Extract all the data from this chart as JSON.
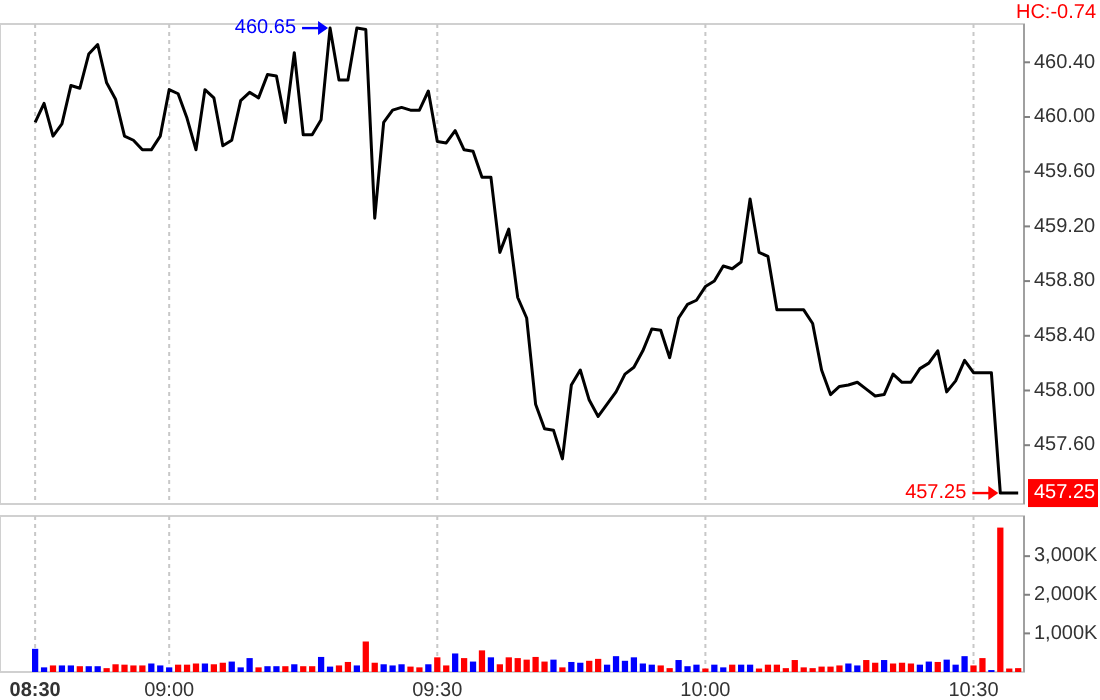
{
  "chart_data": [
    {
      "type": "line",
      "annotations": [
        "HC:-0.74",
        "460.65",
        "457.25",
        "457.25"
      ],
      "categories": [
        null,
        null,
        null,
        null,
        null,
        null,
        null,
        null,
        null,
        null,
        null,
        null,
        null,
        null,
        null,
        null,
        null,
        null,
        null,
        null,
        null,
        null,
        null,
        null,
        null,
        null,
        null,
        null,
        null,
        null,
        null,
        null,
        null,
        null,
        null,
        null,
        null,
        null,
        null,
        null,
        null,
        null,
        null,
        null,
        null,
        null,
        null,
        null,
        null,
        null,
        null,
        null,
        null,
        null,
        null,
        null,
        null,
        null,
        null,
        null,
        null,
        null,
        null,
        null,
        null,
        null,
        null,
        null,
        null,
        null,
        null,
        null,
        null,
        null,
        null,
        null,
        null,
        null,
        null,
        null,
        null,
        null,
        null,
        null,
        null,
        null,
        null,
        null,
        null,
        null,
        null,
        null,
        null,
        null,
        null,
        null,
        null,
        null,
        null,
        null,
        null,
        null,
        null,
        null,
        null,
        null,
        null,
        null,
        null,
        null,
        null
      ],
      "series": [
        {
          "color": "#000000",
          "values": [
            459.96,
            460.1,
            459.86,
            459.95,
            460.23,
            460.21,
            460.46,
            460.53,
            460.25,
            460.13,
            459.86,
            459.83,
            459.76,
            459.76,
            459.86,
            460.2,
            460.17,
            459.99,
            459.76,
            460.2,
            460.14,
            459.79,
            459.83,
            460.12,
            460.18,
            460.14,
            460.31,
            460.3,
            459.96,
            460.47,
            459.87,
            459.87,
            459.98,
            460.65,
            460.27,
            460.27,
            460.65,
            460.64,
            459.26,
            459.96,
            460.05,
            460.07,
            460.05,
            460.05,
            460.19,
            459.82,
            459.81,
            459.9,
            459.76,
            459.75,
            459.56,
            459.56,
            459.01,
            459.18,
            458.68,
            458.53,
            457.9,
            457.72,
            457.71,
            457.5,
            458.04,
            458.15,
            457.93,
            457.81,
            457.9,
            457.99,
            458.12,
            458.17,
            458.29,
            458.45,
            458.44,
            458.24,
            458.53,
            458.63,
            458.66,
            458.76,
            458.8,
            458.91,
            458.89,
            458.94,
            459.4,
            459.01,
            458.98,
            458.59,
            458.59,
            458.59,
            458.59,
            458.49,
            458.15,
            457.97,
            458.03,
            458.04,
            458.06,
            458.01,
            457.96,
            457.97,
            458.12,
            458.06,
            458.06,
            458.16,
            458.2,
            458.29,
            457.99,
            458.07,
            458.22,
            458.13,
            458.13,
            458.13,
            457.25,
            457.25,
            457.25
          ]
        }
      ],
      "ylim": [
        457.17,
        460.68
      ],
      "yticks": [
        {
          "value": 457.6,
          "label": "457.60"
        },
        {
          "value": 458,
          "label": "458.00"
        },
        {
          "value": 458.4,
          "label": "458.40"
        },
        {
          "value": 458.8,
          "label": "458.80"
        },
        {
          "value": 459.2,
          "label": "459.20"
        },
        {
          "value": 459.6,
          "label": "459.60"
        },
        {
          "value": 460,
          "label": "460.00"
        },
        {
          "value": 460.4,
          "label": "460.40"
        }
      ],
      "grid": "x"
    },
    {
      "type": "bar",
      "categories": [
        "08:30",
        null,
        null,
        null,
        null,
        null,
        null,
        null,
        null,
        null,
        null,
        null,
        null,
        null,
        null,
        "09:00",
        null,
        null,
        null,
        null,
        null,
        null,
        null,
        null,
        null,
        null,
        null,
        null,
        null,
        null,
        null,
        null,
        null,
        null,
        null,
        null,
        null,
        null,
        null,
        null,
        null,
        null,
        null,
        null,
        null,
        "09:30",
        null,
        null,
        null,
        null,
        null,
        null,
        null,
        null,
        null,
        null,
        null,
        null,
        null,
        null,
        null,
        null,
        null,
        null,
        null,
        null,
        null,
        null,
        null,
        null,
        null,
        null,
        null,
        null,
        null,
        "10:00",
        null,
        null,
        null,
        null,
        null,
        null,
        null,
        null,
        null,
        null,
        null,
        null,
        null,
        null,
        null,
        null,
        null,
        null,
        null,
        null,
        null,
        null,
        null,
        null,
        null,
        null,
        null,
        null,
        null,
        "10:30",
        null,
        null,
        null,
        null,
        null
      ],
      "values": [
        600,
        120,
        170,
        170,
        170,
        150,
        150,
        150,
        100,
        200,
        190,
        170,
        170,
        220,
        170,
        120,
        190,
        190,
        220,
        220,
        200,
        240,
        270,
        120,
        360,
        120,
        150,
        150,
        150,
        200,
        150,
        150,
        390,
        140,
        170,
        260,
        170,
        790,
        240,
        200,
        170,
        200,
        140,
        120,
        200,
        380,
        170,
        480,
        360,
        270,
        560,
        380,
        200,
        380,
        360,
        320,
        390,
        270,
        320,
        120,
        260,
        240,
        290,
        340,
        190,
        410,
        290,
        380,
        220,
        190,
        170,
        100,
        310,
        150,
        190,
        90,
        190,
        120,
        190,
        190,
        190,
        90,
        190,
        190,
        100,
        310,
        120,
        100,
        140,
        140,
        170,
        220,
        170,
        310,
        240,
        310,
        220,
        240,
        220,
        190,
        270,
        260,
        320,
        190,
        410,
        170,
        360,
        50,
        3740,
        90,
        100
      ],
      "colors": [
        "#0000ff",
        "#0000ff",
        "#ff0000",
        "#0000ff",
        "#0000ff",
        "#ff0000",
        "#0000ff",
        "#0000ff",
        "#ff0000",
        "#ff0000",
        "#ff0000",
        "#ff0000",
        "#ff0000",
        "#0000ff",
        "#0000ff",
        "#0000ff",
        "#ff0000",
        "#ff0000",
        "#ff0000",
        "#0000ff",
        "#ff0000",
        "#ff0000",
        "#0000ff",
        "#0000ff",
        "#0000ff",
        "#ff0000",
        "#0000ff",
        "#0000ff",
        "#ff0000",
        "#0000ff",
        "#ff0000",
        "#ff0000",
        "#0000ff",
        "#0000ff",
        "#ff0000",
        "#ff0000",
        "#0000ff",
        "#ff0000",
        "#ff0000",
        "#0000ff",
        "#0000ff",
        "#0000ff",
        "#ff0000",
        "#ff0000",
        "#0000ff",
        "#ff0000",
        "#ff0000",
        "#0000ff",
        "#ff0000",
        "#0000ff",
        "#ff0000",
        "#0000ff",
        "#ff0000",
        "#ff0000",
        "#ff0000",
        "#ff0000",
        "#ff0000",
        "#ff0000",
        "#0000ff",
        "#ff0000",
        "#0000ff",
        "#0000ff",
        "#ff0000",
        "#ff0000",
        "#0000ff",
        "#0000ff",
        "#0000ff",
        "#0000ff",
        "#0000ff",
        "#0000ff",
        "#ff0000",
        "#ff0000",
        "#0000ff",
        "#0000ff",
        "#0000ff",
        "#ff0000",
        "#0000ff",
        "#0000ff",
        "#ff0000",
        "#0000ff",
        "#0000ff",
        "#ff0000",
        "#ff0000",
        "#ff0000",
        "#ff0000",
        "#ff0000",
        "#ff0000",
        "#ff0000",
        "#ff0000",
        "#ff0000",
        "#ff0000",
        "#0000ff",
        "#0000ff",
        "#ff0000",
        "#ff0000",
        "#0000ff",
        "#ff0000",
        "#ff0000",
        "#ff0000",
        "#0000ff",
        "#0000ff",
        "#ff0000",
        "#0000ff",
        "#0000ff",
        "#0000ff",
        "#ff0000",
        "#ff0000",
        "#0000ff",
        "#ff0000",
        "#ff0000",
        "#ff0000"
      ],
      "ylim": [
        0,
        4040
      ],
      "yticks": [
        {
          "value": 1000,
          "label": "1,000K"
        },
        {
          "value": 2000,
          "label": "2,000K"
        },
        {
          "value": 3000,
          "label": "3,000K"
        }
      ],
      "grid": "x"
    }
  ]
}
